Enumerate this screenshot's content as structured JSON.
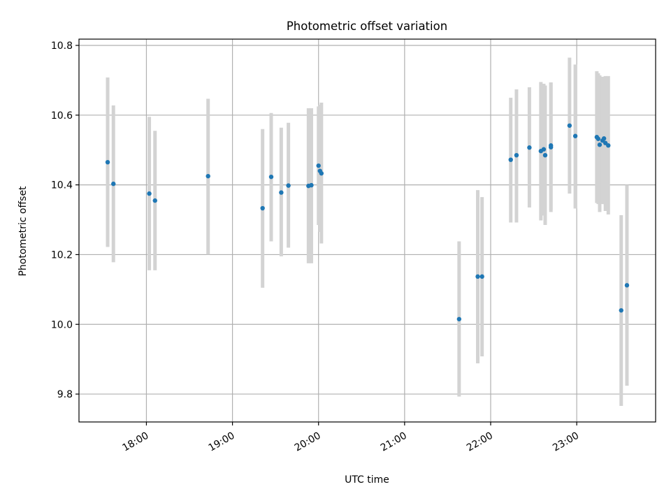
{
  "chart_data": {
    "type": "scatter",
    "title": "Photometric offset variation",
    "xlabel": "UTC time",
    "ylabel": "Photometric offset",
    "x_axis_type": "time",
    "xlim": [
      "17:13",
      "23:55"
    ],
    "ylim": [
      9.72,
      10.818
    ],
    "xticks": [
      "18:00",
      "19:00",
      "20:00",
      "21:00",
      "22:00",
      "23:00"
    ],
    "yticks": [
      9.8,
      10.0,
      10.2,
      10.4,
      10.6,
      10.8
    ],
    "ytick_labels": [
      "9.8",
      "10.0",
      "10.2",
      "10.4",
      "10.6",
      "10.8"
    ],
    "grid": true,
    "legend": "none",
    "point_color": "#1f77b4",
    "errorbar_color": "#d3d3d3",
    "points": [
      {
        "t": "17:33",
        "y": 10.465,
        "lo": 10.222,
        "hi": 10.708
      },
      {
        "t": "17:37",
        "y": 10.403,
        "lo": 10.178,
        "hi": 10.628
      },
      {
        "t": "18:02",
        "y": 10.375,
        "lo": 10.155,
        "hi": 10.595
      },
      {
        "t": "18:06",
        "y": 10.355,
        "lo": 10.155,
        "hi": 10.555
      },
      {
        "t": "18:43",
        "y": 10.425,
        "lo": 10.2,
        "hi": 10.647
      },
      {
        "t": "19:21",
        "y": 10.333,
        "lo": 10.105,
        "hi": 10.56
      },
      {
        "t": "19:27",
        "y": 10.423,
        "lo": 10.238,
        "hi": 10.606
      },
      {
        "t": "19:34",
        "y": 10.378,
        "lo": 10.195,
        "hi": 10.564
      },
      {
        "t": "19:39",
        "y": 10.398,
        "lo": 10.22,
        "hi": 10.578
      },
      {
        "t": "19:53",
        "y": 10.397,
        "lo": 10.175,
        "hi": 10.62
      },
      {
        "t": "19:55",
        "y": 10.399,
        "lo": 10.175,
        "hi": 10.62
      },
      {
        "t": "20:00",
        "y": 10.455,
        "lo": 10.285,
        "hi": 10.625
      },
      {
        "t": "20:01",
        "y": 10.44,
        "lo": 10.265,
        "hi": 10.63
      },
      {
        "t": "20:02",
        "y": 10.433,
        "lo": 10.232,
        "hi": 10.636
      },
      {
        "t": "21:38",
        "y": 10.015,
        "lo": 9.793,
        "hi": 10.238
      },
      {
        "t": "21:51",
        "y": 10.137,
        "lo": 9.888,
        "hi": 10.385
      },
      {
        "t": "21:54",
        "y": 10.137,
        "lo": 9.908,
        "hi": 10.365
      },
      {
        "t": "22:14",
        "y": 10.472,
        "lo": 10.292,
        "hi": 10.65
      },
      {
        "t": "22:18",
        "y": 10.485,
        "lo": 10.292,
        "hi": 10.674
      },
      {
        "t": "22:27",
        "y": 10.507,
        "lo": 10.335,
        "hi": 10.68
      },
      {
        "t": "22:35",
        "y": 10.497,
        "lo": 10.298,
        "hi": 10.695
      },
      {
        "t": "22:37",
        "y": 10.502,
        "lo": 10.312,
        "hi": 10.69
      },
      {
        "t": "22:38",
        "y": 10.485,
        "lo": 10.285,
        "hi": 10.685
      },
      {
        "t": "22:42",
        "y": 10.508,
        "lo": 10.322,
        "hi": 10.694
      },
      {
        "t": "22:42",
        "y": 10.513,
        "lo": 10.328,
        "hi": 10.693
      },
      {
        "t": "22:55",
        "y": 10.57,
        "lo": 10.375,
        "hi": 10.765
      },
      {
        "t": "22:59",
        "y": 10.54,
        "lo": 10.332,
        "hi": 10.745
      },
      {
        "t": "23:14",
        "y": 10.537,
        "lo": 10.348,
        "hi": 10.726
      },
      {
        "t": "23:15",
        "y": 10.532,
        "lo": 10.345,
        "hi": 10.72
      },
      {
        "t": "23:16",
        "y": 10.515,
        "lo": 10.322,
        "hi": 10.714
      },
      {
        "t": "23:18",
        "y": 10.527,
        "lo": 10.345,
        "hi": 10.71
      },
      {
        "t": "23:19",
        "y": 10.533,
        "lo": 10.345,
        "hi": 10.708
      },
      {
        "t": "23:20",
        "y": 10.52,
        "lo": 10.325,
        "hi": 10.712
      },
      {
        "t": "23:22",
        "y": 10.513,
        "lo": 10.315,
        "hi": 10.712
      },
      {
        "t": "23:31",
        "y": 10.04,
        "lo": 9.766,
        "hi": 10.313
      },
      {
        "t": "23:35",
        "y": 10.112,
        "lo": 9.824,
        "hi": 10.4
      }
    ]
  }
}
